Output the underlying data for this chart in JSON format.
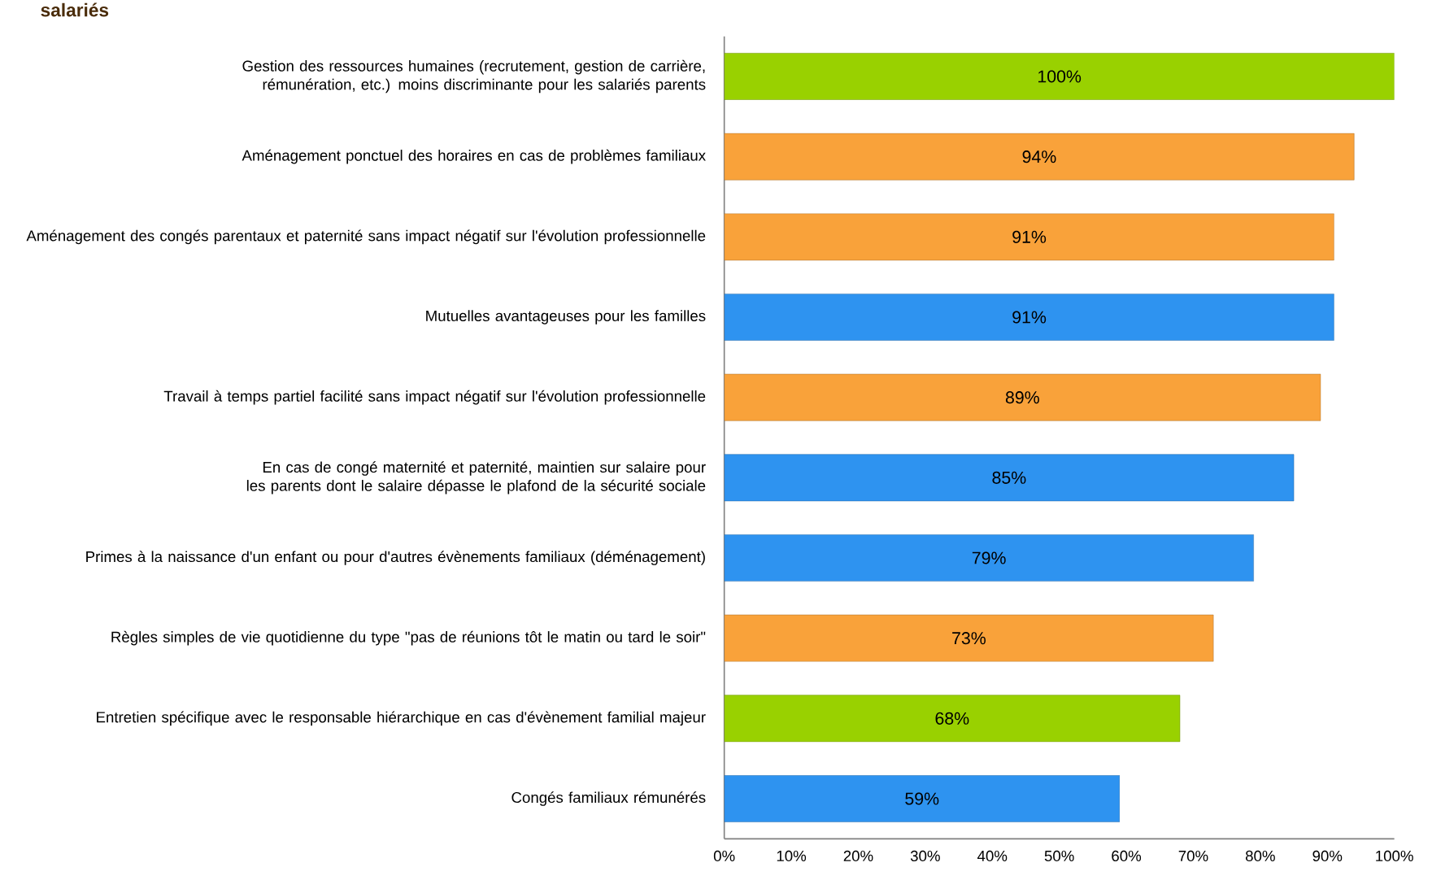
{
  "chart_data": {
    "type": "bar",
    "orientation": "horizontal",
    "title": "salariés",
    "categories": [
      "Gestion des ressources humaines (recrutement, gestion de carrière, rémunération, etc.) moins discriminante pour les salariés parents",
      "Aménagement ponctuel des horaires en cas de problèmes familiaux",
      "Aménagement des congés parentaux et paternité sans impact négatif sur l'évolution professionnelle",
      "Mutuelles avantageuses pour les familles",
      "Travail à temps partiel facilité sans impact négatif sur l'évolution professionnelle",
      "En cas de congé maternité et paternité, maintien sur salaire pour les parents dont le salaire dépasse le plafond de la sécurité sociale",
      "Primes à la naissance d'un enfant ou pour d'autres évènements familiaux (déménagement)",
      "Règles simples de vie quotidienne du type \"pas de réunions tôt le matin ou tard le soir\"",
      "Entretien spécifique avec le responsable hiérarchique en cas d'évènement familial majeur",
      "Congés familiaux rémunérés"
    ],
    "values": [
      100,
      94,
      91,
      91,
      89,
      85,
      79,
      73,
      68,
      59
    ],
    "value_labels": [
      "100%",
      "94%",
      "91%",
      "91%",
      "89%",
      "85%",
      "79%",
      "73%",
      "68%",
      "59%"
    ],
    "colors": [
      "#99d100",
      "#f9a23a",
      "#f9a23a",
      "#2e93f0",
      "#f9a23a",
      "#2e93f0",
      "#2e93f0",
      "#f9a23a",
      "#99d100",
      "#2e93f0"
    ],
    "xlim": [
      0,
      100
    ],
    "xticks": [
      {
        "value": 0,
        "label": "0%"
      },
      {
        "value": 10,
        "label": "10%"
      },
      {
        "value": 20,
        "label": "20%"
      },
      {
        "value": 30,
        "label": "30%"
      },
      {
        "value": 40,
        "label": "40%"
      },
      {
        "value": 50,
        "label": "50%"
      },
      {
        "value": 60,
        "label": "60%"
      },
      {
        "value": 70,
        "label": "70%"
      },
      {
        "value": 80,
        "label": "80%"
      },
      {
        "value": 90,
        "label": "90%"
      },
      {
        "value": 100,
        "label": "100%"
      }
    ]
  }
}
